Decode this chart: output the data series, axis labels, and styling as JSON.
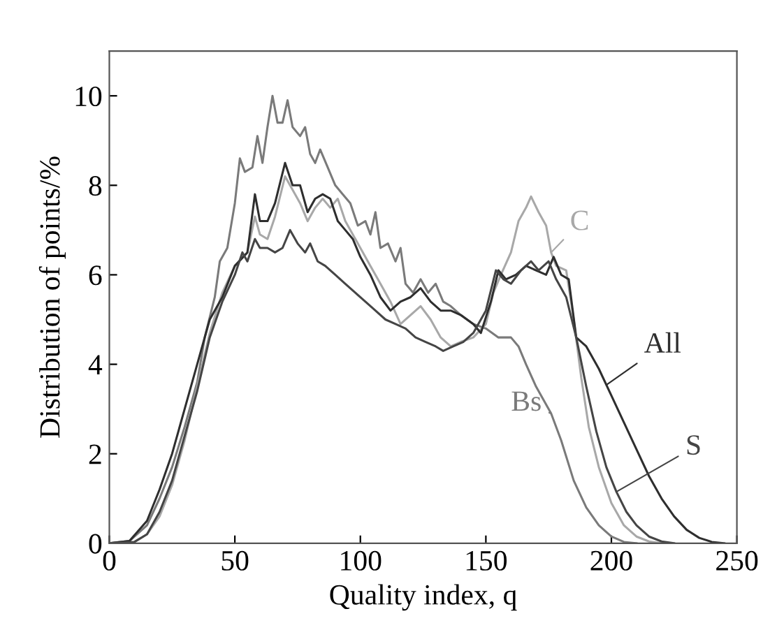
{
  "chart_data": {
    "type": "line",
    "xlabel": "Quality index, q",
    "ylabel": "Distribution of points/%",
    "xlim": [
      0,
      250
    ],
    "ylim": [
      0,
      11
    ],
    "xticks": [
      0,
      50,
      100,
      150,
      200,
      250
    ],
    "yticks": [
      0,
      2,
      4,
      6,
      8,
      10
    ],
    "grid": false,
    "legend": false,
    "marker": "none",
    "line_style": "solid",
    "series": [
      {
        "name": "Bs",
        "color": "#7a7a7a",
        "x": [
          0,
          8,
          15,
          20,
          25,
          30,
          35,
          38,
          42,
          44,
          47,
          50,
          52,
          54,
          57,
          59,
          61,
          63,
          65,
          67,
          69,
          71,
          73,
          76,
          78,
          80,
          82,
          84,
          87,
          90,
          93,
          96,
          99,
          102,
          104,
          106,
          108,
          111,
          114,
          116,
          118,
          121,
          124,
          127,
          130,
          133,
          136,
          140,
          145,
          150,
          155,
          160,
          163,
          166,
          170,
          173,
          176,
          180,
          185,
          190,
          195,
          200,
          205,
          210
        ],
        "values": [
          0,
          0.05,
          0.4,
          1.0,
          1.7,
          2.6,
          3.6,
          4.6,
          5.5,
          6.3,
          6.6,
          7.6,
          8.6,
          8.3,
          8.4,
          9.1,
          8.5,
          9.3,
          10.0,
          9.4,
          9.4,
          9.9,
          9.3,
          9.1,
          9.3,
          8.7,
          8.5,
          8.8,
          8.4,
          8.0,
          7.8,
          7.6,
          7.1,
          7.2,
          6.9,
          7.4,
          6.6,
          6.7,
          6.3,
          6.6,
          5.8,
          5.6,
          5.9,
          5.6,
          5.8,
          5.4,
          5.3,
          5.1,
          4.9,
          4.8,
          4.6,
          4.6,
          4.4,
          4.0,
          3.5,
          3.2,
          2.9,
          2.3,
          1.4,
          0.8,
          0.4,
          0.15,
          0.03,
          0
        ]
      },
      {
        "name": "C",
        "color": "#a8a8a8",
        "x": [
          0,
          10,
          15,
          20,
          25,
          30,
          35,
          40,
          45,
          50,
          55,
          58,
          60,
          63,
          66,
          70,
          73,
          76,
          79,
          82,
          85,
          88,
          91,
          94,
          97,
          100,
          104,
          108,
          112,
          116,
          120,
          124,
          128,
          132,
          136,
          140,
          145,
          150,
          153,
          156,
          160,
          163,
          166,
          168,
          171,
          174,
          176,
          178,
          182,
          185,
          188,
          191,
          195,
          200,
          205,
          210,
          215,
          220
        ],
        "values": [
          0,
          0.03,
          0.2,
          0.6,
          1.3,
          2.3,
          3.5,
          4.7,
          5.6,
          6.2,
          6.5,
          7.3,
          6.9,
          6.8,
          7.3,
          8.2,
          7.9,
          7.6,
          7.2,
          7.5,
          7.7,
          7.5,
          7.7,
          7.2,
          6.9,
          6.6,
          6.2,
          5.8,
          5.4,
          4.9,
          5.1,
          5.3,
          5.0,
          4.6,
          4.4,
          4.5,
          4.6,
          4.9,
          5.6,
          6.0,
          6.5,
          7.2,
          7.5,
          7.75,
          7.4,
          7.1,
          6.5,
          6.2,
          6.1,
          5.0,
          3.7,
          2.6,
          1.7,
          0.9,
          0.4,
          0.15,
          0.04,
          0
        ]
      },
      {
        "name": "All",
        "color": "#2e2e2e",
        "x": [
          0,
          8,
          15,
          20,
          25,
          30,
          35,
          40,
          45,
          50,
          55,
          58,
          60,
          63,
          66,
          70,
          73,
          76,
          79,
          82,
          85,
          88,
          91,
          94,
          97,
          100,
          104,
          108,
          112,
          116,
          120,
          124,
          128,
          132,
          136,
          140,
          145,
          148,
          152,
          155,
          158,
          162,
          166,
          170,
          174,
          177,
          180,
          183,
          186,
          190,
          195,
          200,
          205,
          210,
          215,
          220,
          225,
          230,
          235,
          240,
          245
        ],
        "values": [
          0,
          0.05,
          0.5,
          1.2,
          2.0,
          3.0,
          4.0,
          5.0,
          5.5,
          6.2,
          6.5,
          7.8,
          7.2,
          7.2,
          7.6,
          8.5,
          8.0,
          8.0,
          7.4,
          7.7,
          7.8,
          7.7,
          7.2,
          7.0,
          6.8,
          6.4,
          6.0,
          5.5,
          5.2,
          5.4,
          5.5,
          5.7,
          5.4,
          5.2,
          5.2,
          5.1,
          4.9,
          4.7,
          5.4,
          6.1,
          5.9,
          6.0,
          6.2,
          6.1,
          6.0,
          6.4,
          6.0,
          5.9,
          4.6,
          4.4,
          3.9,
          3.3,
          2.7,
          2.1,
          1.5,
          1.0,
          0.6,
          0.3,
          0.12,
          0.03,
          0
        ]
      },
      {
        "name": "S",
        "color": "#454545",
        "x": [
          0,
          10,
          15,
          20,
          25,
          30,
          35,
          40,
          45,
          50,
          53,
          55,
          58,
          60,
          63,
          66,
          69,
          72,
          75,
          78,
          80,
          83,
          86,
          90,
          94,
          98,
          102,
          106,
          110,
          114,
          118,
          122,
          126,
          130,
          133,
          137,
          141,
          145,
          150,
          154,
          157,
          160,
          164,
          168,
          171,
          175,
          178,
          182,
          186,
          190,
          194,
          198,
          202,
          206,
          210,
          215,
          220,
          225
        ],
        "values": [
          0,
          0.03,
          0.2,
          0.7,
          1.4,
          2.4,
          3.4,
          4.6,
          5.4,
          6.0,
          6.5,
          6.3,
          6.8,
          6.6,
          6.6,
          6.5,
          6.6,
          7.0,
          6.7,
          6.5,
          6.7,
          6.3,
          6.2,
          6.0,
          5.8,
          5.6,
          5.4,
          5.2,
          5.0,
          4.9,
          4.8,
          4.6,
          4.5,
          4.4,
          4.3,
          4.4,
          4.5,
          4.7,
          5.2,
          6.1,
          5.9,
          5.8,
          6.1,
          6.3,
          6.1,
          6.3,
          5.9,
          5.5,
          4.6,
          3.5,
          2.5,
          1.7,
          1.15,
          0.7,
          0.4,
          0.15,
          0.04,
          0
        ]
      }
    ]
  }
}
